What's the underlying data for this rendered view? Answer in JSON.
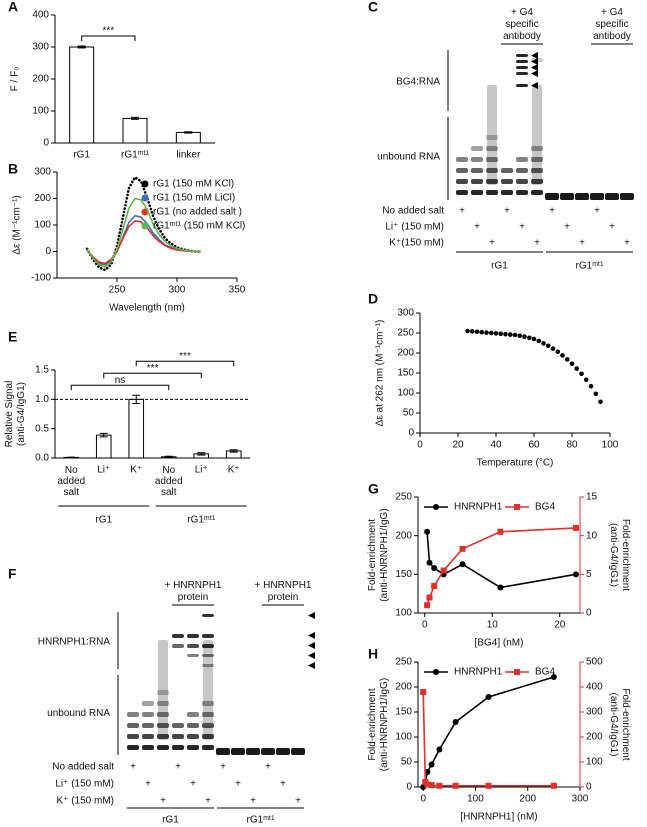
{
  "panel_labels": [
    "A",
    "B",
    "C",
    "D",
    "E",
    "F",
    "G",
    "H"
  ],
  "chart_data": [
    {
      "type": "bar",
      "ylabel": "F / F₀",
      "categories": [
        "rG1",
        "rG1ᵐᵗ¹",
        "linker"
      ],
      "values": [
        300,
        77,
        33
      ],
      "errors": [
        3,
        3,
        2
      ],
      "color": "#ffffff",
      "edgecolor": "#000000",
      "ylim": [
        0,
        400
      ],
      "yticks": [
        0,
        100,
        200,
        300,
        400
      ],
      "significance": [
        {
          "label": "***",
          "between": [
            0,
            1
          ]
        }
      ]
    },
    {
      "type": "line",
      "xlabel": "Wavelength (nm)",
      "ylabel": "Δε (M⁻¹cm⁻¹)",
      "x": [
        225,
        230,
        235,
        240,
        245,
        250,
        255,
        260,
        265,
        270,
        275,
        280,
        285,
        290,
        295,
        300,
        305,
        310,
        315,
        320
      ],
      "series": [
        {
          "name": "rG1 (150 mM KCl)",
          "color": "#000000",
          "linestyle": "dotted",
          "values": [
            10,
            -30,
            -60,
            -70,
            -50,
            20,
            130,
            240,
            280,
            265,
            205,
            135,
            85,
            50,
            30,
            15,
            8,
            3,
            0,
            0
          ]
        },
        {
          "name": "rG1 (150 mM LiCl)",
          "color": "#3a6fb7",
          "values": [
            5,
            -25,
            -45,
            -50,
            -35,
            0,
            55,
            110,
            135,
            130,
            105,
            70,
            45,
            25,
            15,
            8,
            4,
            2,
            0,
            0
          ]
        },
        {
          "name": "rG1 (no added salt )",
          "color": "#e0302a",
          "values": [
            5,
            -20,
            -40,
            -45,
            -30,
            0,
            50,
            95,
            115,
            112,
            90,
            60,
            38,
            22,
            12,
            6,
            3,
            1,
            0,
            0
          ]
        },
        {
          "name": "rG1ᵐᵗ¹ (150 mM KCl)",
          "color": "#5ab94b",
          "values": [
            8,
            -25,
            -50,
            -58,
            -40,
            10,
            85,
            165,
            200,
            195,
            160,
            105,
            65,
            38,
            22,
            12,
            6,
            2,
            0,
            0
          ]
        }
      ],
      "xlim": [
        200,
        350
      ],
      "xticks": [
        250,
        300,
        350
      ],
      "ylim": [
        -100,
        300
      ],
      "yticks": [
        -100,
        0,
        100,
        200,
        300
      ],
      "legend": "upper right"
    },
    {
      "type": "scatter",
      "xlabel": "Temperature (°C)",
      "ylabel": "Δε at 262 nm (M⁻¹cm⁻¹)",
      "x": [
        25,
        27.5,
        30,
        32.5,
        35,
        37.5,
        40,
        42.5,
        45,
        47.5,
        50,
        52.5,
        55,
        57.5,
        60,
        62.5,
        65,
        67.5,
        70,
        72.5,
        75,
        77.5,
        80,
        82.5,
        85,
        87.5,
        90,
        92.5,
        95
      ],
      "values": [
        255,
        254,
        253,
        252,
        251,
        250,
        249,
        248,
        247,
        246,
        245,
        243,
        241,
        238,
        235,
        230,
        224,
        218,
        211,
        203,
        194,
        184,
        173,
        161,
        148,
        133,
        117,
        98,
        78
      ],
      "color": "#000000",
      "xlim": [
        0,
        100
      ],
      "xticks": [
        0,
        20,
        40,
        60,
        80,
        100
      ],
      "ylim": [
        0,
        300
      ],
      "yticks": [
        0,
        50,
        100,
        150,
        200,
        250,
        300
      ]
    },
    {
      "type": "bar",
      "ylabel": "Relative Signal (anti-G4/IgG1)",
      "categories": [
        "No added salt",
        "Li⁺",
        "K⁺",
        "No added salt",
        "Li⁺",
        "K⁺"
      ],
      "values": [
        0.01,
        0.39,
        1.0,
        0.02,
        0.07,
        0.12
      ],
      "errors": [
        0.005,
        0.03,
        0.07,
        0.01,
        0.02,
        0.02
      ],
      "color": "#ffffff",
      "edgecolor": "#000000",
      "ylim": [
        0,
        1.5
      ],
      "yticks": [
        {
          "value": 0,
          "label": "0.0"
        },
        {
          "value": 0.5,
          "label": "0.5"
        },
        {
          "value": 1,
          "label": "1.0"
        },
        {
          "value": 1.5,
          "label": "1.5"
        }
      ],
      "reference_line": 1,
      "significance": [
        {
          "label": "ns",
          "between": [
            0,
            3
          ]
        },
        {
          "label": "***",
          "between": [
            1,
            4
          ]
        },
        {
          "label": "***",
          "between": [
            2,
            5
          ]
        }
      ],
      "groups": [
        {
          "label": "rG1",
          "between": [
            0,
            2
          ]
        },
        {
          "label": "rG1ᵐᵗ¹",
          "between": [
            3,
            5
          ]
        }
      ]
    },
    {
      "type": "line",
      "xlabel": "[BG4] (nM)",
      "ylabel": "Fold-enrichment (anti-HNRNPH1/IgG)",
      "y2label": "Fold-enrichment (anti-G4/IgG1)",
      "x": [
        0.35,
        0.7,
        1.4,
        2.8,
        5.6,
        11.2,
        22.4
      ],
      "series": [
        {
          "name": "HNRNPH1",
          "color": "#000000",
          "marker": "circle",
          "values": [
            205,
            165,
            158,
            150,
            163,
            133,
            150
          ]
        },
        {
          "name": "BG4",
          "color": "#e0302a",
          "marker": "square",
          "axis": "y2",
          "values": [
            1,
            2,
            3.5,
            5.5,
            8.3,
            10.5,
            11
          ]
        }
      ],
      "xlim": [
        -1,
        23
      ],
      "xticks": [
        0,
        10,
        20
      ],
      "ylim": [
        100,
        250
      ],
      "yticks": [
        100,
        150,
        200,
        250
      ],
      "y2lim": [
        0,
        15
      ],
      "y2ticks": [
        0,
        5,
        10,
        15
      ],
      "legend": "upper center"
    },
    {
      "type": "line",
      "xlabel": "[HNRNPH1] (nM)",
      "ylabel": "Fold-enrichment (anti-HNRNPH1/IgG)",
      "y2label": "Fold-enrichment (anti-G4/IgG1)",
      "x": [
        0,
        4,
        8,
        16,
        31,
        62,
        125,
        250
      ],
      "series": [
        {
          "name": "HNRNPH1",
          "color": "#000000",
          "marker": "circle",
          "values": [
            0,
            10,
            30,
            45,
            75,
            130,
            180,
            220
          ]
        },
        {
          "name": "BG4",
          "color": "#e0302a",
          "marker": "square",
          "axis": "y2",
          "values": [
            380,
            20,
            10,
            8,
            5,
            5,
            5,
            5
          ]
        }
      ],
      "xlim": [
        -10,
        300
      ],
      "xticks": [
        0,
        100,
        200,
        300
      ],
      "ylim": [
        0,
        250
      ],
      "yticks": [
        0,
        50,
        100,
        150,
        200,
        250
      ],
      "y2lim": [
        0,
        500
      ],
      "y2ticks": [
        0,
        100,
        200,
        300,
        400,
        500
      ],
      "legend": "upper center"
    }
  ],
  "gels": [
    {
      "headers": [
        "+ G4 specific antibody",
        "+ G4 specific antibody"
      ],
      "complex_label": "BG4:RNA",
      "unbound_label": "unbound RNA",
      "rows": [
        "No added salt",
        "Li⁺ (150 mM)",
        "K⁺(150 mM)"
      ],
      "sign": "+",
      "groups": [
        "rG1",
        "rG1ᵐᵗ¹"
      ]
    },
    {
      "headers": [
        "+ HNRNPH1 protein",
        "+ HNRNPH1 protein"
      ],
      "complex_label": "HNRNPH1:RNA",
      "unbound_label": "unbound RNA",
      "rows": [
        "No added salt",
        "Li⁺ (150 mM)",
        "K⁺ (150 mM)"
      ],
      "sign": "+",
      "groups": [
        "rG1",
        "rG1ᵐᵗ¹"
      ]
    }
  ]
}
